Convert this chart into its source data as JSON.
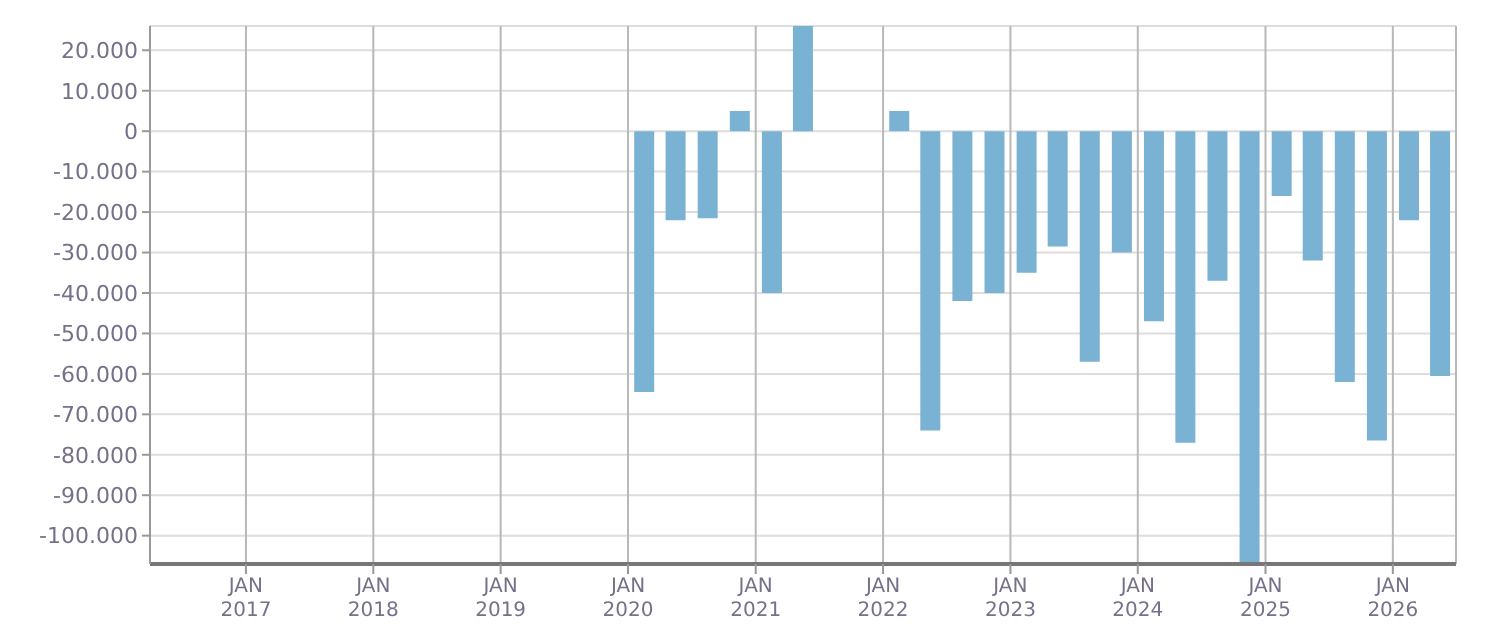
{
  "chart_data": {
    "type": "bar",
    "x": [
      "2020-02-15",
      "2020-05-15",
      "2020-08-15",
      "2020-11-15",
      "2021-02-15",
      "2021-05-15",
      "2022-02-15",
      "2022-05-15",
      "2022-08-15",
      "2022-11-15",
      "2023-02-15",
      "2023-05-15",
      "2023-08-15",
      "2023-11-15",
      "2024-02-15",
      "2024-05-15",
      "2024-08-15",
      "2024-11-15",
      "2025-02-15",
      "2025-05-15",
      "2025-08-15",
      "2025-11-15",
      "2026-02-15",
      "2026-05-15"
    ],
    "values": [
      -64500,
      -22000,
      -21500,
      5000,
      -40000,
      26000,
      5000,
      -74000,
      -42000,
      -40000,
      -35000,
      -28500,
      -57000,
      -30000,
      -47000,
      -77000,
      -37000,
      -107000,
      -16000,
      -32000,
      -62000,
      -76500,
      -22000,
      -60500
    ],
    "color": "#7ab2d4",
    "xlim": [
      "2016-04-01",
      "2026-07-01"
    ],
    "xticks": [
      {
        "value": "2017-01-01",
        "label": "JAN 2017"
      },
      {
        "value": "2018-01-01",
        "label": "JAN 2018"
      },
      {
        "value": "2019-01-01",
        "label": "JAN 2019"
      },
      {
        "value": "2020-01-01",
        "label": "JAN 2020"
      },
      {
        "value": "2021-01-01",
        "label": "JAN 2021"
      },
      {
        "value": "2022-01-01",
        "label": "JAN 2022"
      },
      {
        "value": "2023-01-01",
        "label": "JAN 2023"
      },
      {
        "value": "2024-01-01",
        "label": "JAN 2024"
      },
      {
        "value": "2025-01-01",
        "label": "JAN 2025"
      },
      {
        "value": "2026-01-01",
        "label": "JAN 2026"
      }
    ],
    "ylim": [
      -107000,
      26000
    ],
    "yticks": [
      {
        "value": 20000,
        "label": "20.000"
      },
      {
        "value": 10000,
        "label": "10.000"
      },
      0,
      {
        "value": -10000,
        "label": "-10.000"
      },
      {
        "value": -20000,
        "label": "-20.000"
      },
      {
        "value": -30000,
        "label": "-30.000"
      },
      {
        "value": -40000,
        "label": "-40.000"
      },
      {
        "value": -50000,
        "label": "-50.000"
      },
      {
        "value": -60000,
        "label": "-60.000"
      },
      {
        "value": -70000,
        "label": "-70.000"
      },
      {
        "value": -80000,
        "label": "-80.000"
      },
      {
        "value": -90000,
        "label": "-90.000"
      },
      {
        "value": -100000,
        "label": "-100.000"
      }
    ],
    "grid": true
  }
}
